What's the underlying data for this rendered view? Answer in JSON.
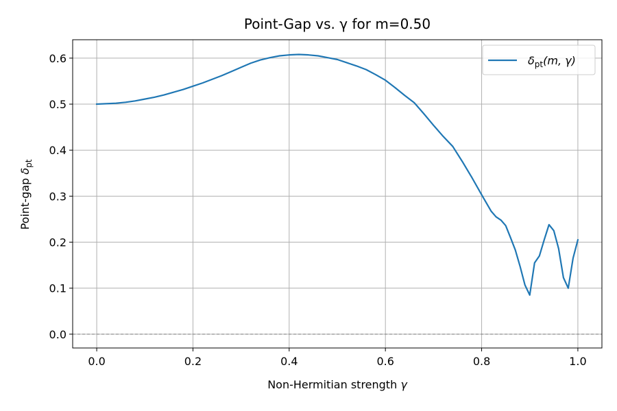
{
  "chart_data": {
    "type": "line",
    "title": "Point-Gap vs. γ for m=0.50",
    "xlabel_main": "Non-Hermitian strength ",
    "xlabel_symbol": "γ",
    "ylabel_main": "Point-gap ",
    "ylabel_symbol": "δ",
    "ylabel_sub": "pt",
    "xlim": [
      -0.05,
      1.05
    ],
    "ylim": [
      -0.03,
      0.64
    ],
    "xticks": [
      0.0,
      0.2,
      0.4,
      0.6,
      0.8,
      1.0
    ],
    "xtick_labels": [
      "0.0",
      "0.2",
      "0.4",
      "0.6",
      "0.8",
      "1.0"
    ],
    "yticks": [
      0.0,
      0.1,
      0.2,
      0.3,
      0.4,
      0.5,
      0.6
    ],
    "ytick_labels": [
      "0.0",
      "0.1",
      "0.2",
      "0.3",
      "0.4",
      "0.5",
      "0.6"
    ],
    "grid": true,
    "reference_line": {
      "y": 0.0,
      "style": "dashed",
      "color": "#808080"
    },
    "legend_placement": "top-right",
    "series": [
      {
        "legend": {
          "symbol": "δ",
          "sub": "pt",
          "args": "(m, γ)"
        },
        "color": "#1f77b4",
        "x": [
          0.0,
          0.02,
          0.04,
          0.06,
          0.08,
          0.1,
          0.12,
          0.14,
          0.16,
          0.18,
          0.2,
          0.22,
          0.24,
          0.26,
          0.28,
          0.3,
          0.32,
          0.34,
          0.36,
          0.38,
          0.4,
          0.42,
          0.44,
          0.46,
          0.48,
          0.5,
          0.52,
          0.54,
          0.56,
          0.58,
          0.6,
          0.62,
          0.64,
          0.66,
          0.68,
          0.7,
          0.72,
          0.74,
          0.76,
          0.78,
          0.8,
          0.81,
          0.82,
          0.83,
          0.84,
          0.85,
          0.86,
          0.87,
          0.88,
          0.89,
          0.9,
          0.91,
          0.92,
          0.93,
          0.94,
          0.95,
          0.96,
          0.97,
          0.98,
          0.99,
          1.0
        ],
        "y": [
          0.5,
          0.501,
          0.502,
          0.504,
          0.507,
          0.511,
          0.515,
          0.52,
          0.526,
          0.532,
          0.539,
          0.546,
          0.554,
          0.562,
          0.571,
          0.58,
          0.589,
          0.596,
          0.601,
          0.605,
          0.607,
          0.608,
          0.607,
          0.605,
          0.601,
          0.597,
          0.59,
          0.583,
          0.575,
          0.564,
          0.552,
          0.536,
          0.519,
          0.503,
          0.479,
          0.454,
          0.43,
          0.408,
          0.375,
          0.34,
          0.303,
          0.285,
          0.267,
          0.255,
          0.248,
          0.236,
          0.21,
          0.183,
          0.147,
          0.107,
          0.085,
          0.155,
          0.17,
          0.205,
          0.238,
          0.225,
          0.186,
          0.123,
          0.1,
          0.165,
          0.205
        ]
      }
    ]
  }
}
